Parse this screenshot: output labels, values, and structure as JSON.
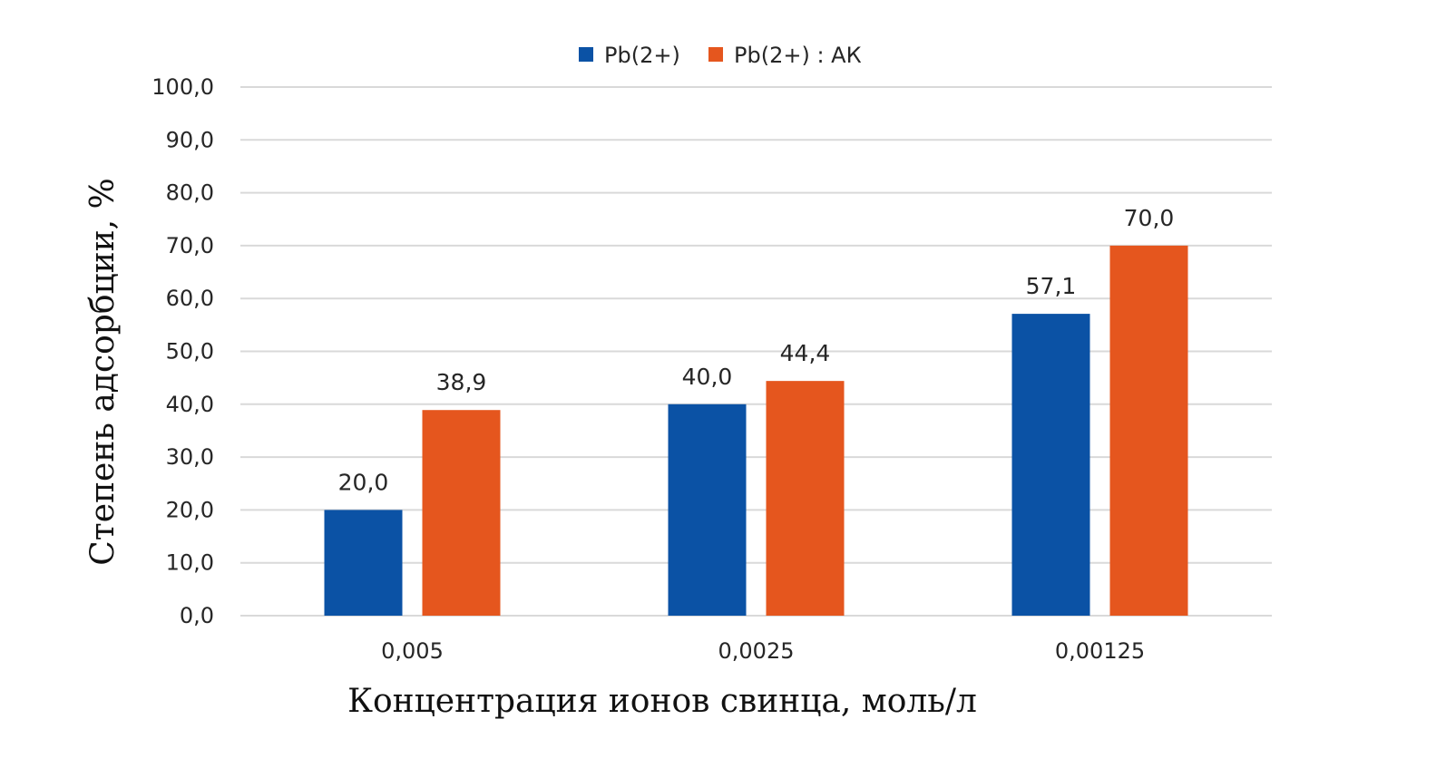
{
  "chart_data": {
    "type": "bar",
    "title": "",
    "xlabel": "Концентрация ионов свинца, моль/л",
    "ylabel": "Степень адсорбции, %",
    "categories": [
      "0,005",
      "0,0025",
      "0,00125"
    ],
    "series": [
      {
        "name": "Pb(2+)",
        "values": [
          20.0,
          40.0,
          57.1
        ],
        "labels": [
          "20,0",
          "40,0",
          "57,1"
        ],
        "color": "#0b52a5"
      },
      {
        "name": "Pb(2+) : АК",
        "values": [
          38.9,
          44.4,
          70.0
        ],
        "labels": [
          "38,9",
          "44,4",
          "70,0"
        ],
        "color": "#e5561e"
      }
    ],
    "ylim": [
      0,
      100
    ],
    "yticks": [
      "0,0",
      "10,0",
      "20,0",
      "30,0",
      "40,0",
      "50,0",
      "60,0",
      "70,0",
      "80,0",
      "90,0",
      "100,0"
    ],
    "grid": true,
    "legend_position": "top-center",
    "gridline_color": "#d9d9d9"
  }
}
